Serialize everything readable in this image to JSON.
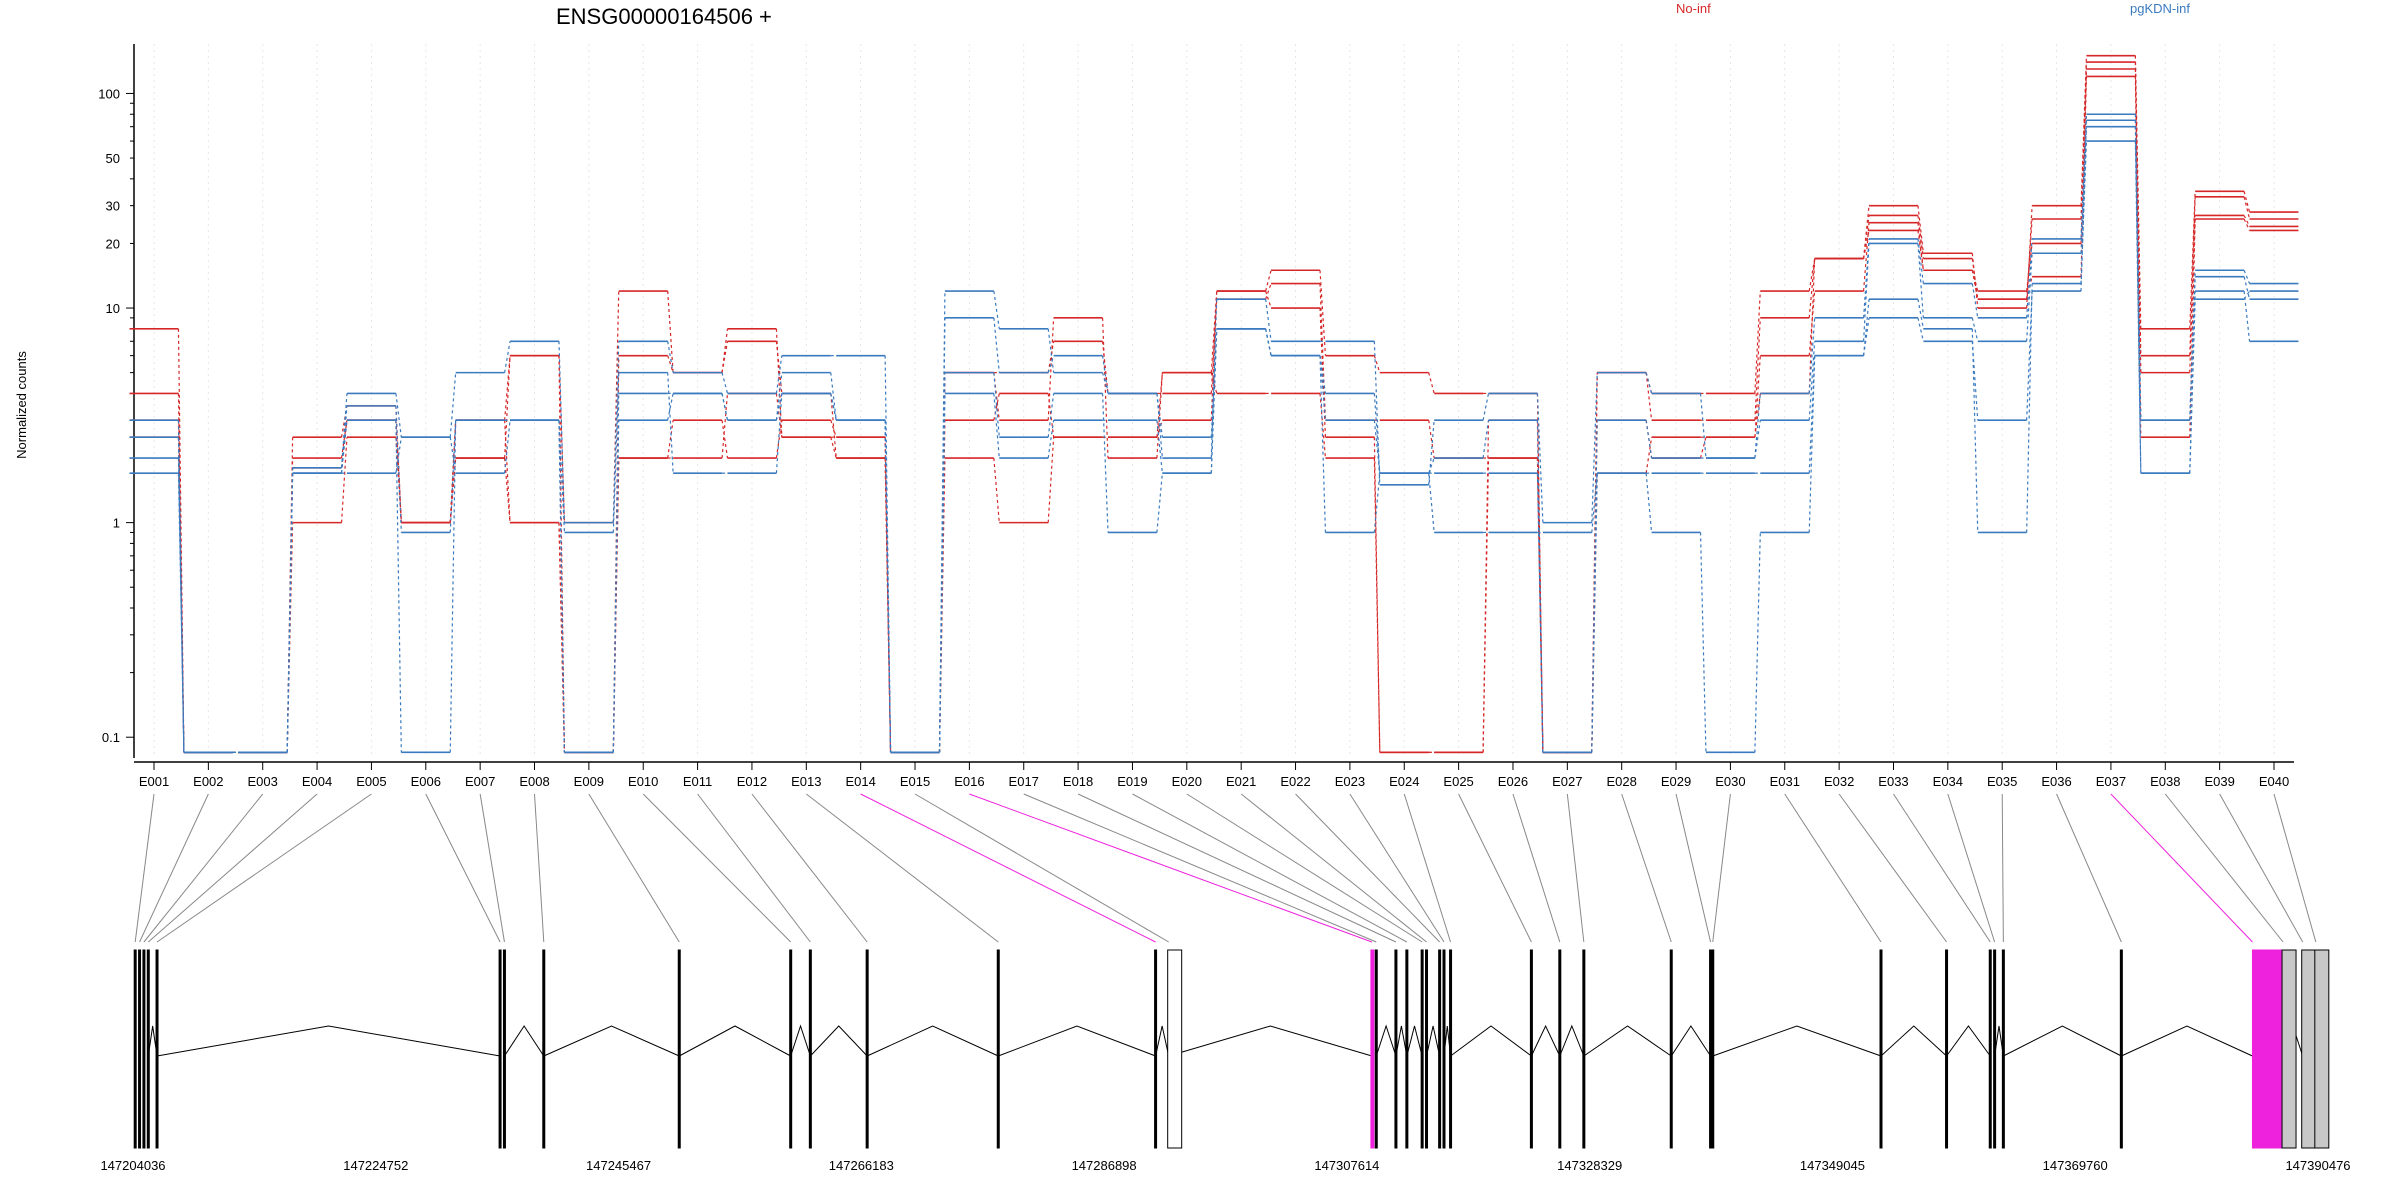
{
  "chart_data": {
    "type": "line",
    "title": "ENSG00000164506 +",
    "ylabel": "Normalized counts",
    "xlabel": "",
    "yscale": "log",
    "ylim": [
      0.08,
      170
    ],
    "yticks": [
      0.1,
      1,
      10,
      20,
      30,
      50,
      100
    ],
    "grid": "vertical",
    "legend_position": "top-right",
    "colors": {
      "No-inf": "#d62728",
      "pgKDN-inf": "#3a7abf",
      "highlight": "#ee22dd"
    },
    "categories": [
      "E001",
      "E002",
      "E003",
      "E004",
      "E005",
      "E006",
      "E007",
      "E008",
      "E009",
      "E010",
      "E011",
      "E012",
      "E013",
      "E014",
      "E015",
      "E016",
      "E017",
      "E018",
      "E019",
      "E020",
      "E021",
      "E022",
      "E023",
      "E024",
      "E025",
      "E026",
      "E027",
      "E028",
      "E029",
      "E030",
      "E031",
      "E032",
      "E033",
      "E034",
      "E035",
      "E036",
      "E037",
      "E038",
      "E039",
      "E040"
    ],
    "series": [
      {
        "name": "No-inf",
        "values": [
          8,
          0.085,
          0.085,
          2.5,
          3.5,
          1,
          2,
          6,
          1,
          12,
          5,
          8,
          2.5,
          2.5,
          0.085,
          5,
          3,
          9,
          2,
          5,
          12,
          15,
          6,
          5,
          4,
          4,
          0.085,
          5,
          4,
          4,
          12,
          17,
          30,
          18,
          10,
          30,
          150,
          8,
          35,
          28
        ]
      },
      {
        "name": "No-inf",
        "values": [
          4,
          0.085,
          0.085,
          2,
          3,
          1,
          3,
          6,
          0.085,
          6,
          5,
          7,
          4,
          2,
          0.085,
          5,
          5,
          7,
          4,
          4,
          11,
          13,
          3,
          3,
          2,
          2,
          0.085,
          5,
          3,
          3,
          9,
          17,
          27,
          17,
          11,
          26,
          140,
          6,
          33,
          26
        ]
      },
      {
        "name": "No-inf",
        "values": [
          3,
          0.085,
          0.085,
          1,
          2.5,
          1,
          2,
          1,
          0.085,
          2,
          2,
          4,
          2.5,
          2,
          0.085,
          2,
          1,
          2.5,
          2.5,
          3,
          12,
          10,
          2.5,
          0.085,
          0.085,
          3,
          0.085,
          1.7,
          2.5,
          2.5,
          6,
          12,
          25,
          15,
          12,
          20,
          130,
          5,
          27,
          24
        ]
      },
      {
        "name": "No-inf",
        "values": [
          2.5,
          0.085,
          0.085,
          1.8,
          3,
          1,
          3,
          1,
          0.085,
          2,
          3,
          2,
          3,
          2.5,
          0.085,
          3,
          4,
          2.5,
          2.5,
          5,
          4,
          4,
          2,
          0.085,
          0.085,
          2,
          0.085,
          3,
          2,
          2.5,
          4,
          17,
          23,
          15,
          11,
          14,
          120,
          2.5,
          26,
          23
        ]
      },
      {
        "name": "pgKDN-inf",
        "values": [
          3,
          0.085,
          0.085,
          1.8,
          4,
          2.5,
          5,
          7,
          1,
          7,
          5,
          4,
          6,
          6,
          0.085,
          12,
          8,
          5,
          4,
          2,
          11,
          7,
          7,
          1.5,
          3,
          4,
          1,
          5,
          4,
          2,
          4,
          9,
          21,
          13,
          9,
          21,
          80,
          3,
          15,
          13
        ]
      },
      {
        "name": "pgKDN-inf",
        "values": [
          2.5,
          0.085,
          0.085,
          1.7,
          3.5,
          0.9,
          3,
          3,
          0.085,
          4,
          4,
          3,
          5,
          3,
          0.085,
          9,
          5,
          6,
          4,
          2.5,
          8,
          6,
          4,
          1.7,
          2,
          3,
          0.085,
          3,
          2,
          2,
          3,
          7,
          20,
          9,
          7,
          18,
          70,
          3,
          14,
          11
        ]
      },
      {
        "name": "pgKDN-inf",
        "values": [
          2,
          0.085,
          0.085,
          1.7,
          3,
          0.085,
          3,
          3,
          0.085,
          3,
          4,
          3,
          4,
          3,
          0.085,
          5,
          2.5,
          4,
          0.9,
          1.7,
          8,
          6,
          0.9,
          1.7,
          0.9,
          0.9,
          0.9,
          1.7,
          0.9,
          0.085,
          0.9,
          6,
          11,
          8,
          0.9,
          13,
          60,
          1.7,
          11,
          12
        ]
      },
      {
        "name": "pgKDN-inf",
        "values": [
          1.7,
          0.085,
          0.085,
          1.7,
          1.7,
          2.5,
          1.7,
          3,
          0.9,
          5,
          1.7,
          1.7,
          4,
          3,
          0.085,
          4,
          2,
          3,
          3,
          1.7,
          8,
          6,
          3,
          1.7,
          1.7,
          1.7,
          0.085,
          1.7,
          1.7,
          1.7,
          1.7,
          6,
          9,
          7,
          3,
          12,
          75,
          1.7,
          12,
          7
        ]
      }
    ],
    "genomic_axis": {
      "ticks": [
        "147204036",
        "147224752",
        "147245467",
        "147266183",
        "147286898",
        "147307614",
        "147328329",
        "147349045",
        "147369760",
        "147390476"
      ]
    }
  }
}
